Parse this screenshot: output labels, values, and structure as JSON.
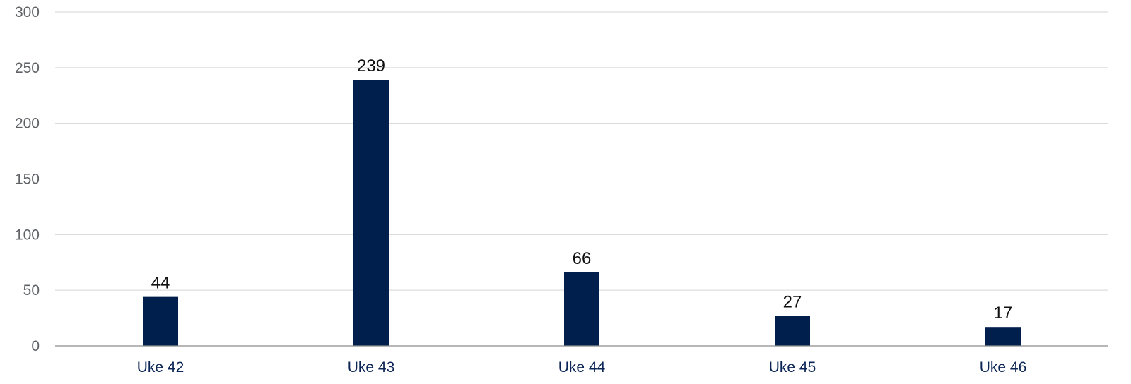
{
  "chart_data": {
    "type": "bar",
    "title": "",
    "xlabel": "",
    "ylabel": "",
    "categories": [
      "Uke 42",
      "Uke 43",
      "Uke 44",
      "Uke 45",
      "Uke 46"
    ],
    "values": [
      44,
      239,
      66,
      27,
      17
    ],
    "ylim": [
      0,
      300
    ],
    "yticks": [
      0,
      50,
      100,
      150,
      200,
      250,
      300
    ],
    "grid": true,
    "legend": "none",
    "colors": {
      "bar": "#001f4d"
    }
  }
}
